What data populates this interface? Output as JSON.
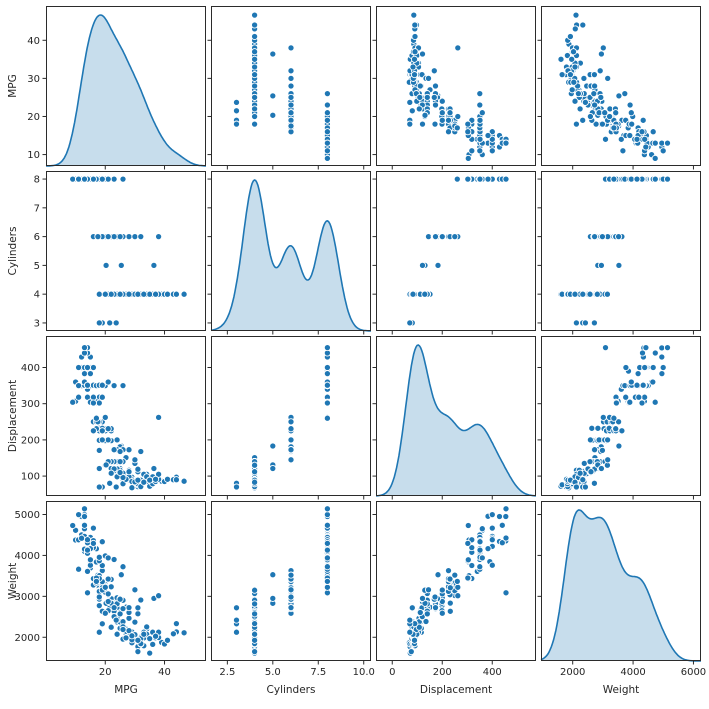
{
  "chart_data": {
    "type": "scatter-matrix",
    "title": "",
    "diagonal": "kde",
    "legend": false,
    "grid": false,
    "variables": [
      "MPG",
      "Cylinders",
      "Displacement",
      "Weight"
    ],
    "colors": {
      "point": "#1f77b4",
      "point_edge": "#ffffff",
      "kde_line": "#1f77b4",
      "kde_fill": "#1f77b4",
      "spine": "#2b2b2b",
      "tick_text": "#262626"
    },
    "axes": [
      {
        "name": "MPG",
        "xlim": [
          0,
          54
        ],
        "ylim": [
          7,
          49
        ],
        "xticks": [
          20,
          40
        ],
        "xtick_labels": [
          "20",
          "40"
        ],
        "yticks": [
          10,
          20,
          30,
          40
        ],
        "ytick_labels": [
          "10",
          "20",
          "30",
          "40"
        ]
      },
      {
        "name": "Cylinders",
        "xlim": [
          1.6,
          10.4
        ],
        "ylim": [
          2.72,
          8.28
        ],
        "xticks": [
          2.5,
          5,
          7.5,
          10
        ],
        "xtick_labels": [
          "2.5",
          "5.0",
          "7.5",
          "10.0"
        ],
        "yticks": [
          3,
          4,
          5,
          6,
          7,
          8
        ],
        "ytick_labels": [
          "3",
          "4",
          "5",
          "6",
          "7",
          "8"
        ]
      },
      {
        "name": "Displacement",
        "xlim": [
          -65,
          575
        ],
        "ylim": [
          45,
          487
        ],
        "xticks": [
          0,
          200,
          400
        ],
        "xtick_labels": [
          "0",
          "200",
          "400"
        ],
        "yticks": [
          100,
          200,
          300,
          400
        ],
        "ytick_labels": [
          "100",
          "200",
          "300",
          "400"
        ]
      },
      {
        "name": "Weight",
        "xlim": [
          950,
          6250
        ],
        "ylim": [
          1420,
          5330
        ],
        "xticks": [
          2000,
          4000,
          6000
        ],
        "xtick_labels": [
          "2000",
          "4000",
          "6000"
        ],
        "yticks": [
          2000,
          3000,
          4000,
          5000
        ],
        "ytick_labels": [
          "2000",
          "3000",
          "4000",
          "5000"
        ]
      }
    ],
    "point_columns": [
      "MPG",
      "Cylinders",
      "Displacement",
      "Weight"
    ],
    "points": [
      [
        33,
        4,
        91,
        1795
      ],
      [
        30,
        4,
        79,
        1950
      ],
      [
        29,
        4,
        97,
        2130
      ],
      [
        31,
        4,
        71,
        1773
      ],
      [
        35,
        4,
        72,
        1613
      ],
      [
        27,
        4,
        97,
        2100
      ],
      [
        26,
        4,
        97,
        2265
      ],
      [
        24,
        4,
        113,
        2372
      ],
      [
        25,
        4,
        104,
        2375
      ],
      [
        23,
        4,
        115,
        2694
      ],
      [
        28,
        4,
        116,
        2123
      ],
      [
        27,
        4,
        101,
        2202
      ],
      [
        34,
        4,
        105,
        2200
      ],
      [
        31,
        4,
        76,
        1649
      ],
      [
        32,
        4,
        83,
        2003
      ],
      [
        29,
        4,
        68,
        1867
      ],
      [
        31,
        4,
        79,
        1963
      ],
      [
        28,
        4,
        90,
        2125
      ],
      [
        30,
        4,
        88,
        2065
      ],
      [
        25,
        4,
        121,
        2933
      ],
      [
        24,
        4,
        121,
        2868
      ],
      [
        22,
        4,
        121,
        2945
      ],
      [
        26,
        4,
        91,
        1955
      ],
      [
        33,
        4,
        91,
        1985
      ],
      [
        28,
        4,
        107,
        2464
      ],
      [
        25,
        4,
        116,
        2220
      ],
      [
        26,
        4,
        108,
        2380
      ],
      [
        27,
        4,
        97,
        2145
      ],
      [
        18,
        4,
        121,
        2933
      ],
      [
        29,
        4,
        90,
        1937
      ],
      [
        32,
        4,
        71,
        1836
      ],
      [
        28,
        4,
        98,
        2164
      ],
      [
        26,
        4,
        79,
        2255
      ],
      [
        24,
        4,
        120,
        2489
      ],
      [
        39,
        4,
        86,
        1875
      ],
      [
        36,
        4,
        79,
        1825
      ],
      [
        37,
        4,
        85,
        1990
      ],
      [
        38,
        4,
        91,
        1995
      ],
      [
        34,
        4,
        86,
        2254
      ],
      [
        32,
        4,
        91,
        1965
      ],
      [
        44,
        4,
        97,
        2130
      ],
      [
        46.6,
        4,
        86,
        2110
      ],
      [
        40,
        4,
        85,
        1835
      ],
      [
        41,
        4,
        91,
        1925
      ],
      [
        43,
        4,
        90,
        2085
      ],
      [
        36,
        4,
        98,
        2125
      ],
      [
        33,
        4,
        105,
        2125
      ],
      [
        34,
        4,
        98,
        2075
      ],
      [
        35,
        4,
        89,
        1968
      ],
      [
        31,
        4,
        112,
        2575
      ],
      [
        38,
        4,
        105,
        2125
      ],
      [
        37,
        4,
        91,
        2025
      ],
      [
        31,
        4,
        119,
        2720
      ],
      [
        30,
        4,
        135,
        2385
      ],
      [
        27,
        4,
        151,
        2735
      ],
      [
        26,
        4,
        140,
        2905
      ],
      [
        24,
        4,
        140,
        2720
      ],
      [
        23,
        4,
        140,
        2639
      ],
      [
        22,
        4,
        140,
        2815
      ],
      [
        21,
        4,
        140,
        3070
      ],
      [
        29,
        4,
        85,
        2035
      ],
      [
        27,
        4,
        91,
        1985
      ],
      [
        24,
        4,
        98,
        2075
      ],
      [
        26,
        4,
        96,
        2189
      ],
      [
        25,
        4,
        110,
        2600
      ],
      [
        23,
        4,
        120,
        2506
      ],
      [
        22,
        4,
        108,
        2245
      ],
      [
        30,
        4,
        84,
        2370
      ],
      [
        32,
        4,
        89,
        1845
      ],
      [
        44,
        4,
        90,
        2335
      ],
      [
        28,
        4,
        112,
        2605
      ],
      [
        25,
        4,
        140,
        2572
      ],
      [
        20,
        4,
        130,
        3150
      ],
      [
        31,
        4,
        89,
        1925
      ],
      [
        33,
        4,
        83,
        2075
      ],
      [
        19,
        3,
        70,
        2330
      ],
      [
        18,
        3,
        70,
        2124
      ],
      [
        21.5,
        3,
        80,
        2720
      ],
      [
        23.7,
        3,
        70,
        2420
      ],
      [
        20.3,
        5,
        131,
        2830
      ],
      [
        25.4,
        5,
        183,
        3530
      ],
      [
        36.4,
        5,
        121,
        2950
      ],
      [
        18,
        6,
        199,
        2774
      ],
      [
        18,
        6,
        232,
        3211
      ],
      [
        19,
        6,
        232,
        2634
      ],
      [
        21,
        6,
        199,
        2648
      ],
      [
        22,
        6,
        198,
        2833
      ],
      [
        18,
        6,
        250,
        3021
      ],
      [
        19,
        6,
        250,
        3282
      ],
      [
        18,
        6,
        250,
        3139
      ],
      [
        16,
        6,
        250,
        3278
      ],
      [
        17,
        6,
        250,
        3329
      ],
      [
        21,
        6,
        231,
        3039
      ],
      [
        20,
        6,
        225,
        3121
      ],
      [
        19,
        6,
        225,
        3264
      ],
      [
        18,
        6,
        225,
        3121
      ],
      [
        20,
        6,
        232,
        3288
      ],
      [
        20,
        6,
        231,
        3245
      ],
      [
        22,
        6,
        225,
        3233
      ],
      [
        22,
        6,
        232,
        2835
      ],
      [
        24,
        6,
        200,
        2965
      ],
      [
        19,
        6,
        232,
        3210
      ],
      [
        20,
        6,
        200,
        2587
      ],
      [
        21,
        6,
        200,
        2875
      ],
      [
        19,
        6,
        225,
        3360
      ],
      [
        22,
        6,
        231,
        3415
      ],
      [
        25,
        6,
        181,
        2945
      ],
      [
        20,
        6,
        198,
        3102
      ],
      [
        21,
        6,
        200,
        3060
      ],
      [
        19,
        6,
        200,
        3155
      ],
      [
        28,
        6,
        173,
        2725
      ],
      [
        26,
        6,
        173,
        2700
      ],
      [
        24,
        6,
        173,
        2817
      ],
      [
        38,
        6,
        262,
        3015
      ],
      [
        30,
        6,
        145,
        3160
      ],
      [
        17,
        6,
        231,
        3445
      ],
      [
        16,
        6,
        225,
        3430
      ],
      [
        32,
        6,
        168,
        2910
      ],
      [
        25,
        6,
        168,
        2930
      ],
      [
        18,
        6,
        171,
        2984
      ],
      [
        19,
        6,
        225,
        3630
      ],
      [
        23,
        6,
        173,
        2725
      ],
      [
        21,
        6,
        231,
        3425
      ],
      [
        17.5,
        6,
        250,
        3520
      ],
      [
        18,
        8,
        307,
        3504
      ],
      [
        15,
        8,
        350,
        3693
      ],
      [
        18,
        8,
        318,
        3436
      ],
      [
        16,
        8,
        304,
        3433
      ],
      [
        17,
        8,
        302,
        3449
      ],
      [
        15,
        8,
        429,
        4341
      ],
      [
        14,
        8,
        454,
        4354
      ],
      [
        14,
        8,
        440,
        4312
      ],
      [
        14,
        8,
        455,
        4425
      ],
      [
        15,
        8,
        390,
        3850
      ],
      [
        14,
        8,
        340,
        3609
      ],
      [
        15,
        8,
        400,
        3761
      ],
      [
        14,
        8,
        455,
        3086
      ],
      [
        10,
        8,
        360,
        4615
      ],
      [
        10,
        8,
        307,
        4376
      ],
      [
        11,
        8,
        318,
        4382
      ],
      [
        9,
        8,
        304,
        4732
      ],
      [
        13,
        8,
        350,
        4100
      ],
      [
        12,
        8,
        350,
        4502
      ],
      [
        13,
        8,
        400,
        4464
      ],
      [
        13,
        8,
        351,
        4154
      ],
      [
        14,
        8,
        318,
        4096
      ],
      [
        13,
        8,
        383,
        4955
      ],
      [
        12,
        8,
        400,
        4422
      ],
      [
        13,
        8,
        400,
        4997
      ],
      [
        11,
        8,
        350,
        3664
      ],
      [
        12,
        8,
        429,
        4952
      ],
      [
        13,
        8,
        454,
        4951
      ],
      [
        13,
        8,
        360,
        4654
      ],
      [
        11,
        8,
        400,
        4997
      ],
      [
        16,
        8,
        400,
        4668
      ],
      [
        15,
        8,
        350,
        4440
      ],
      [
        16,
        8,
        351,
        4363
      ],
      [
        14,
        8,
        318,
        4077
      ],
      [
        14,
        8,
        351,
        4054
      ],
      [
        17,
        8,
        305,
        3840
      ],
      [
        19,
        8,
        318,
        3755
      ],
      [
        20,
        8,
        262,
        3221
      ],
      [
        18,
        8,
        302,
        3870
      ],
      [
        20,
        8,
        350,
        3988
      ],
      [
        26,
        8,
        350,
        3725
      ],
      [
        23,
        8,
        350,
        3900
      ],
      [
        17,
        8,
        350,
        4165
      ],
      [
        18,
        8,
        351,
        3955
      ],
      [
        16,
        8,
        400,
        4220
      ],
      [
        16,
        8,
        318,
        4190
      ],
      [
        15,
        8,
        304,
        3892
      ],
      [
        13,
        8,
        440,
        4735
      ],
      [
        14,
        8,
        400,
        4385
      ],
      [
        17,
        8,
        260,
        3365
      ],
      [
        21,
        8,
        360,
        3940
      ],
      [
        19,
        8,
        351,
        4335
      ],
      [
        15,
        8,
        383,
        4166
      ],
      [
        16,
        8,
        302,
        4295
      ],
      [
        14,
        8,
        351,
        4129
      ],
      [
        13,
        8,
        455,
        5140
      ]
    ]
  }
}
